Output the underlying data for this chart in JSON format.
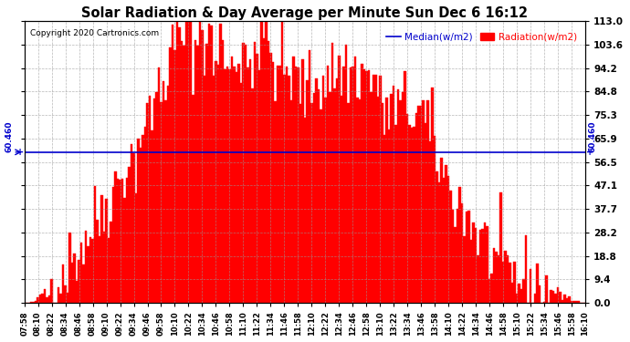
{
  "title": "Solar Radiation & Day Average per Minute Sun Dec 6 16:12",
  "copyright": "Copyright 2020 Cartronics.com",
  "median_value": 60.46,
  "median_label": "60.460",
  "legend_median": "Median(w/m2)",
  "legend_radiation": "Radiation(w/m2)",
  "ymin": 0.0,
  "ymax": 113.0,
  "yticks": [
    0.0,
    9.4,
    18.8,
    28.2,
    37.7,
    47.1,
    56.5,
    65.9,
    75.3,
    84.8,
    94.2,
    103.6,
    113.0
  ],
  "background_color": "#ffffff",
  "grid_color": "#999999",
  "bar_color": "#ff0000",
  "median_color": "#0000cc",
  "title_color": "#000000",
  "time_start": "07:58",
  "time_end": "16:10",
  "xtick_every_n": 6,
  "radiation_seed": 42
}
